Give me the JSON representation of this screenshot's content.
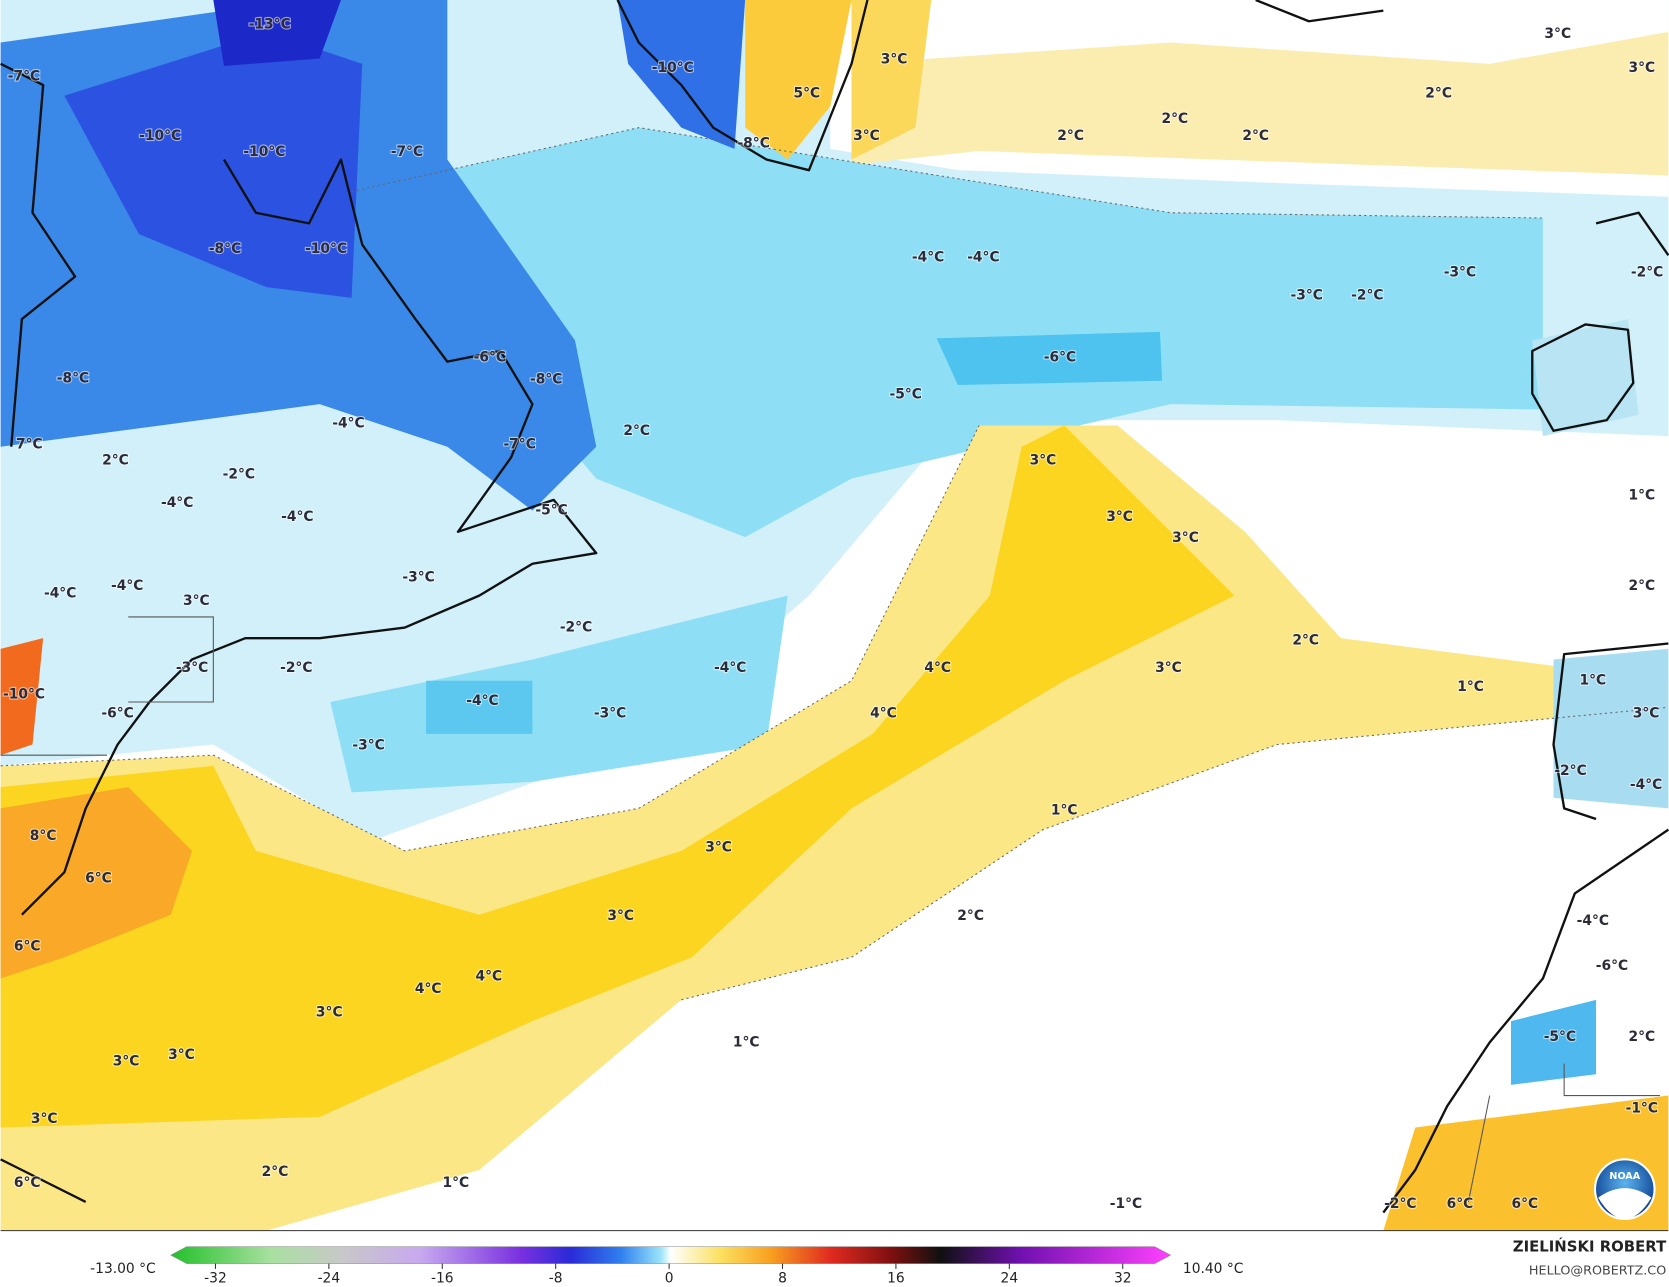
{
  "map": {
    "labels": [
      "-13°C",
      "-7°C",
      "-10°C",
      "5°C",
      "3°C",
      "-8°C",
      "3°C",
      "-10°C",
      "-10°C",
      "-7°C",
      "2°C",
      "2°C",
      "2°C",
      "2°C",
      "3°C",
      "3°C",
      "-8°C",
      "-10°C",
      "-4°C",
      "-4°C",
      "-3°C",
      "-2°C",
      "-3°C",
      "-2°C",
      "-8°C",
      "-6°C",
      "-8°C",
      "-6°C",
      "-5°C",
      "2°C",
      "-4°C",
      "7°C",
      "2°C",
      "-2°C",
      "-7°C",
      "3°C",
      "-4°C",
      "-4°C",
      "-5°C",
      "3°C",
      "3°C",
      "1°C",
      "-4°C",
      "-4°C",
      "3°C",
      "-3°C",
      "2°C",
      "-2°C",
      "-2°C",
      "-3°C",
      "2°C",
      "4°C",
      "-4°C",
      "3°C",
      "1°C",
      "1°C",
      "-10°C",
      "-6°C",
      "-4°C",
      "-3°C",
      "4°C",
      "3°C",
      "-3°C",
      "-2°C",
      "-4°C",
      "1°C",
      "8°C",
      "3°C",
      "6°C",
      "3°C",
      "2°C",
      "-4°C",
      "6°C",
      "4°C",
      "4°C",
      "-6°C",
      "3°C",
      "-5°C",
      "2°C",
      "1°C",
      "3°C",
      "3°C",
      "3°C",
      "-1°C",
      "2°C",
      "1°C",
      "6°C",
      "-1°C",
      "-2°C",
      "6°C",
      "6°C"
    ]
  },
  "colorbar": {
    "min_label": "-13.00 °C",
    "max_label": "10.40 °C",
    "ticks": [
      -32,
      -24,
      -16,
      -8,
      0,
      8,
      16,
      24,
      32
    ]
  },
  "credits": {
    "name": "ZIELIŃSKI ROBERT",
    "email": "HELLO@ROBERTZ.CO",
    "logo": "NOAA"
  }
}
